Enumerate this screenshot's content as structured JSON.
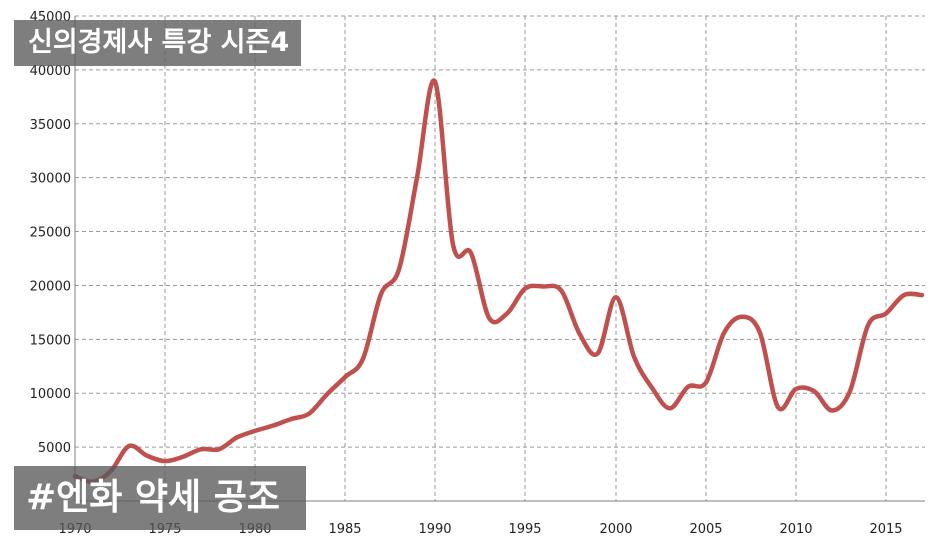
{
  "chart_data": {
    "type": "line",
    "title": "",
    "xlabel": "",
    "ylabel": "",
    "xlim": [
      1970,
      2017
    ],
    "ylim": [
      0,
      45000
    ],
    "grid": true,
    "x_ticks": [
      1970,
      1975,
      1980,
      1985,
      1990,
      1995,
      2000,
      2005,
      2010,
      2015
    ],
    "y_ticks": [
      5000,
      10000,
      15000,
      20000,
      25000,
      30000,
      35000,
      40000,
      45000
    ],
    "series": [
      {
        "name": "",
        "color": "#c0504d",
        "points": [
          [
            1970,
            2300
          ],
          [
            1971,
            1800
          ],
          [
            1972,
            2800
          ],
          [
            1973,
            5100
          ],
          [
            1974,
            4200
          ],
          [
            1975,
            3700
          ],
          [
            1976,
            4100
          ],
          [
            1977,
            4800
          ],
          [
            1978,
            4800
          ],
          [
            1979,
            5900
          ],
          [
            1980,
            6500
          ],
          [
            1981,
            7000
          ],
          [
            1982,
            7600
          ],
          [
            1983,
            8100
          ],
          [
            1984,
            9900
          ],
          [
            1985,
            11500
          ],
          [
            1986,
            13200
          ],
          [
            1987,
            19200
          ],
          [
            1988,
            21500
          ],
          [
            1989,
            30000
          ],
          [
            1990,
            38900
          ],
          [
            1991,
            23800
          ],
          [
            1992,
            23000
          ],
          [
            1993,
            17000
          ],
          [
            1994,
            17400
          ],
          [
            1995,
            19700
          ],
          [
            1996,
            19900
          ],
          [
            1997,
            19500
          ],
          [
            1998,
            15500
          ],
          [
            1999,
            13700
          ],
          [
            2000,
            18900
          ],
          [
            2001,
            13400
          ],
          [
            2002,
            10500
          ],
          [
            2003,
            8600
          ],
          [
            2004,
            10600
          ],
          [
            2005,
            11000
          ],
          [
            2006,
            15600
          ],
          [
            2007,
            17100
          ],
          [
            2008,
            15600
          ],
          [
            2009,
            8700
          ],
          [
            2010,
            10400
          ],
          [
            2011,
            10200
          ],
          [
            2012,
            8400
          ],
          [
            2013,
            10200
          ],
          [
            2014,
            16300
          ],
          [
            2015,
            17400
          ],
          [
            2016,
            19100
          ],
          [
            2017,
            19100
          ]
        ]
      }
    ]
  },
  "captions": {
    "top": "신의경제사 특강 시즌4",
    "bottom": "#엔화 약세 공조"
  }
}
